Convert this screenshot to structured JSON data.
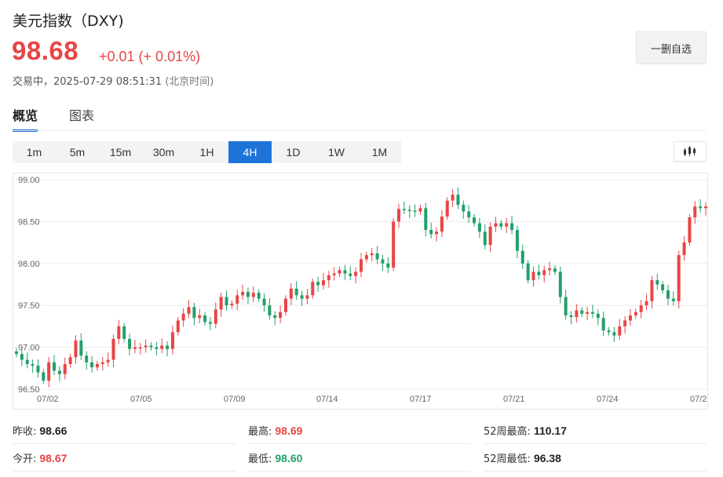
{
  "header": {
    "title": "美元指数（DXY)",
    "price": "98.68",
    "change": "+0.01 (+ 0.01%)",
    "status_label": "交易中，",
    "timestamp": "2025-07-29 08:51:31",
    "timezone": "(北京时间)",
    "watchlist_button": "一删自选"
  },
  "tabs": [
    {
      "label": "概览",
      "active": true
    },
    {
      "label": "图表",
      "active": false
    }
  ],
  "periods": [
    {
      "label": "1m",
      "active": false
    },
    {
      "label": "5m",
      "active": false
    },
    {
      "label": "15m",
      "active": false
    },
    {
      "label": "30m",
      "active": false
    },
    {
      "label": "1H",
      "active": false
    },
    {
      "label": "4H",
      "active": true
    },
    {
      "label": "1D",
      "active": false
    },
    {
      "label": "1W",
      "active": false
    },
    {
      "label": "1M",
      "active": false
    }
  ],
  "chart_type_icon": "candlestick-icon",
  "colors": {
    "up": "#e84545",
    "down": "#22a06b",
    "accent": "#1e73d9",
    "grid": "#ececec"
  },
  "chart_data": {
    "type": "candlestick",
    "ylim": [
      96.5,
      99.0
    ],
    "y_ticks": [
      "99.00",
      "98.50",
      "98.00",
      "97.50",
      "97.00",
      "96.50"
    ],
    "x_ticks": [
      "07/02",
      "07/05",
      "07/09",
      "07/14",
      "07/17",
      "07/21",
      "07/24",
      "07/2"
    ],
    "grid": true,
    "close": [
      96.92,
      96.85,
      96.8,
      96.78,
      96.7,
      96.6,
      96.82,
      96.72,
      96.68,
      96.8,
      96.88,
      97.08,
      96.9,
      96.82,
      96.76,
      96.8,
      96.82,
      96.85,
      97.1,
      97.25,
      97.1,
      96.98,
      97.0,
      97.0,
      97.02,
      97.0,
      96.98,
      97.02,
      96.98,
      97.18,
      97.32,
      97.4,
      97.48,
      97.35,
      97.38,
      97.3,
      97.28,
      97.45,
      97.6,
      97.5,
      97.52,
      97.62,
      97.66,
      97.6,
      97.65,
      97.58,
      97.5,
      97.38,
      97.35,
      97.42,
      97.58,
      97.7,
      97.62,
      97.58,
      97.62,
      97.78,
      97.74,
      97.8,
      97.86,
      97.88,
      97.92,
      97.88,
      97.85,
      97.9,
      98.05,
      98.1,
      98.12,
      98.05,
      98.0,
      97.95,
      98.5,
      98.65,
      98.64,
      98.63,
      98.62,
      98.66,
      98.4,
      98.35,
      98.38,
      98.56,
      98.75,
      98.82,
      98.7,
      98.62,
      98.55,
      98.48,
      98.38,
      98.22,
      98.44,
      98.48,
      98.44,
      98.48,
      98.4,
      98.15,
      98.0,
      97.8,
      97.9,
      97.86,
      97.92,
      97.94,
      97.9,
      97.6,
      97.38,
      97.36,
      97.44,
      97.4,
      97.42,
      97.4,
      97.35,
      97.2,
      97.18,
      97.14,
      97.25,
      97.32,
      97.38,
      97.42,
      97.5,
      97.55,
      97.8,
      97.75,
      97.68,
      97.58,
      97.55,
      98.1,
      98.25,
      98.55,
      98.68,
      98.66,
      98.68
    ]
  },
  "stats": {
    "prev_close_label": "昨收:",
    "prev_close": "98.66",
    "open_label": "今开:",
    "open": "98.67",
    "high_label": "最高:",
    "high": "98.69",
    "low_label": "最低:",
    "low": "98.60",
    "w52_high_label": "52周最高:",
    "w52_high": "110.17",
    "w52_low_label": "52周最低:",
    "w52_low": "96.38"
  }
}
